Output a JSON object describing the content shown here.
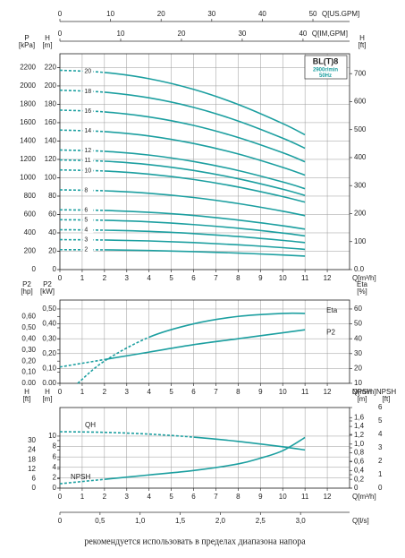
{
  "chart_data": [
    {
      "type": "line",
      "color": "#1c9fa0",
      "x": [
        0,
        2,
        4,
        6,
        8,
        10,
        11
      ],
      "dashed_below_x": 2,
      "y_axis": 1,
      "model": "BL(T)8",
      "speed": "2900r/min",
      "frequency": "50Hz",
      "x_axes": [
        {
          "label": "Q[m³/h]",
          "position": "bottom",
          "lim": [
            0,
            13
          ],
          "ticks": [
            0,
            1,
            2,
            3,
            4,
            5,
            6,
            7,
            8,
            9,
            10,
            11,
            12
          ],
          "grid": true
        },
        {
          "label": "Q[US.GPM]",
          "position": "top",
          "lim": [
            0,
            57.24
          ],
          "ticks": [
            0,
            10,
            20,
            30,
            40,
            50
          ]
        },
        {
          "label": "Q[IM,GPM]",
          "position": "top",
          "lim": [
            0,
            47.66
          ],
          "ticks": [
            0,
            10,
            20,
            30,
            40
          ]
        }
      ],
      "y_axes": [
        {
          "label": [
            "P",
            "[kPa]"
          ],
          "side": "left",
          "lim": [
            0,
            2350
          ],
          "ticks": [
            0,
            200,
            400,
            600,
            800,
            1000,
            1200,
            1400,
            1600,
            1800,
            2000,
            2200
          ]
        },
        {
          "label": [
            "H",
            "[m]"
          ],
          "side": "left",
          "lim": [
            0,
            235
          ],
          "ticks": [
            0,
            20,
            40,
            60,
            80,
            100,
            120,
            140,
            160,
            180,
            200,
            220
          ],
          "grid": true
        },
        {
          "label": [
            "H",
            "[ft]"
          ],
          "side": "right",
          "lim": [
            0,
            771
          ],
          "ticks": [
            {
              "value": 0,
              "label": "0.0"
            },
            100,
            200,
            300,
            400,
            500,
            600,
            700
          ]
        }
      ],
      "series": [
        {
          "name": "20",
          "values": [
            217,
            214.6,
            207.8,
            196.2,
            179.8,
            159,
            146.8
          ]
        },
        {
          "name": "18",
          "values": [
            195.3,
            193.1,
            187,
            176.6,
            161.8,
            143.1,
            132.1
          ]
        },
        {
          "name": "16",
          "values": [
            173.6,
            171.7,
            166.2,
            157,
            143.8,
            127.2,
            117.4
          ]
        },
        {
          "name": "14",
          "values": [
            151.9,
            150.2,
            145.5,
            137.3,
            125.9,
            111.3,
            102.8
          ]
        },
        {
          "name": "12",
          "values": [
            130.2,
            128.8,
            124.7,
            117.7,
            107.9,
            95.4,
            88.1
          ]
        },
        {
          "name": "11",
          "values": [
            119.4,
            118,
            114.3,
            107.9,
            98.9,
            87.5,
            80.7
          ]
        },
        {
          "name": "10",
          "values": [
            108.5,
            107.3,
            103.9,
            98.1,
            89.9,
            79.5,
            73.4
          ]
        },
        {
          "name": "8",
          "values": [
            86.8,
            85.8,
            83.1,
            78.5,
            71.9,
            63.6,
            58.7
          ]
        },
        {
          "name": "6",
          "values": [
            65.1,
            64.4,
            62.3,
            58.9,
            53.9,
            47.7,
            44
          ]
        },
        {
          "name": "5",
          "values": [
            54.3,
            53.7,
            52,
            49,
            45,
            39.8,
            36.7
          ]
        },
        {
          "name": "4",
          "values": [
            43.4,
            42.9,
            41.6,
            39.2,
            36,
            31.8,
            29.4
          ]
        },
        {
          "name": "3",
          "values": [
            32.6,
            32.2,
            31.2,
            29.4,
            27,
            23.9,
            22
          ]
        },
        {
          "name": "2",
          "values": [
            21.7,
            21.5,
            20.8,
            19.6,
            18,
            15.9,
            14.7
          ]
        }
      ]
    },
    {
      "type": "line",
      "color": "#1c9fa0",
      "x_axes": [
        {
          "label": "Q[m³/h]",
          "position": "bottom",
          "lim": [
            0,
            13
          ],
          "ticks": [
            0,
            1,
            2,
            3,
            4,
            5,
            6,
            7,
            8,
            9,
            10,
            11,
            12
          ],
          "grid": true
        }
      ],
      "y_axes": [
        {
          "label": [
            "P2",
            "[hp]"
          ],
          "side": "left",
          "lim": [
            0,
            0.75
          ],
          "ticks": [
            {
              "value": 0,
              "label": "0.00"
            },
            {
              "value": 0.1,
              "label": "0,10"
            },
            {
              "value": 0.2,
              "label": "0,20"
            },
            {
              "value": 0.3,
              "label": "0,30"
            },
            {
              "value": 0.4,
              "label": "0,40"
            },
            {
              "value": 0.5,
              "label": "0,50"
            },
            {
              "value": 0.6,
              "label": "0,60"
            }
          ]
        },
        {
          "label": [
            "P2",
            "[kW]"
          ],
          "side": "left",
          "lim": [
            0,
            0.56
          ],
          "ticks": [
            {
              "value": 0,
              "label": "0.00"
            },
            {
              "value": 0.1,
              "label": "0,10"
            },
            {
              "value": 0.2,
              "label": "0,20"
            },
            {
              "value": 0.3,
              "label": "0,30"
            },
            {
              "value": 0.4,
              "label": "0,40"
            },
            {
              "value": 0.5,
              "label": "0,50"
            }
          ]
        },
        {
          "label": [
            "Eta",
            "[%]"
          ],
          "side": "right",
          "lim": [
            10,
            66
          ],
          "ticks": [
            10,
            20,
            30,
            40,
            50,
            60
          ],
          "grid": true
        }
      ],
      "series": [
        {
          "name": "Eta",
          "y_axis": 2,
          "x": [
            0.8,
            2,
            4,
            6,
            8,
            10,
            11
          ],
          "values": [
            10,
            25,
            41,
            50,
            55,
            57,
            57
          ],
          "dashed_below_x": 4
        },
        {
          "name": "P2",
          "y_axis": 1,
          "x": [
            0,
            2,
            4,
            6,
            8,
            10,
            11
          ],
          "values": [
            0.11,
            0.16,
            0.21,
            0.26,
            0.3,
            0.34,
            0.36
          ],
          "dashed_below_x": 2
        }
      ]
    },
    {
      "type": "line",
      "color": "#1c9fa0",
      "x_axes": [
        {
          "label": "Q[m³/h]",
          "position": "bottom",
          "lim": [
            0,
            13
          ],
          "ticks": [
            0,
            1,
            2,
            3,
            4,
            5,
            6,
            7,
            8,
            9,
            10,
            11,
            12
          ],
          "grid": true
        },
        {
          "label": "Q[l/s]",
          "position": "bottom",
          "lim": [
            0,
            3.611
          ],
          "ticks": [
            0,
            {
              "value": 0.5,
              "label": "0,5"
            },
            {
              "value": 1,
              "label": "1,0"
            },
            {
              "value": 1.5,
              "label": "1,5"
            },
            {
              "value": 2,
              "label": "2,0"
            },
            {
              "value": 2.5,
              "label": "2,5"
            },
            {
              "value": 3,
              "label": "3,0"
            }
          ]
        }
      ],
      "y_axes": [
        {
          "label": [
            "H",
            "[ft]"
          ],
          "side": "left",
          "lim": [
            0,
            50.85
          ],
          "ticks": [
            0,
            6,
            12,
            18,
            24,
            30
          ]
        },
        {
          "label": [
            "H",
            "[m]"
          ],
          "side": "left",
          "lim": [
            0,
            15.5
          ],
          "ticks": [
            0,
            2,
            4,
            6,
            8,
            10
          ],
          "grid": true
        },
        {
          "label": [
            "NPSH",
            "[m]"
          ],
          "side": "right",
          "lim": [
            0,
            1.829
          ],
          "ticks": [
            0,
            {
              "value": 0.2,
              "label": "0,2"
            },
            {
              "value": 0.4,
              "label": "0,4"
            },
            {
              "value": 0.6,
              "label": "0,6"
            },
            {
              "value": 0.8,
              "label": "0,8"
            },
            {
              "value": 1,
              "label": "1,0"
            },
            {
              "value": 1.2,
              "label": "1,2"
            },
            {
              "value": 1.4,
              "label": "1,4"
            },
            {
              "value": 1.6,
              "label": "1,6"
            }
          ]
        },
        {
          "label": [
            "NPSH",
            "[ft]"
          ],
          "side": "right",
          "lim": [
            0,
            6
          ],
          "ticks": [
            0,
            1,
            2,
            3,
            4,
            5,
            6
          ]
        }
      ],
      "series": [
        {
          "name": "QH",
          "y_axis": 1,
          "x": [
            0,
            2,
            4,
            6,
            8,
            10,
            11
          ],
          "values": [
            10.85,
            10.73,
            10.39,
            9.81,
            8.99,
            7.95,
            7.34
          ],
          "dashed_below_x": 6
        },
        {
          "name": "NPSH",
          "y_axis": 2,
          "x": [
            0,
            2,
            4,
            6,
            8,
            9,
            10,
            11
          ],
          "values": [
            0.1,
            0.2,
            0.3,
            0.4,
            0.55,
            0.68,
            0.85,
            1.15
          ],
          "dashed_below_x": 2
        }
      ]
    }
  ],
  "caption": "рекомендуется использовать в пределах диапазона напора"
}
